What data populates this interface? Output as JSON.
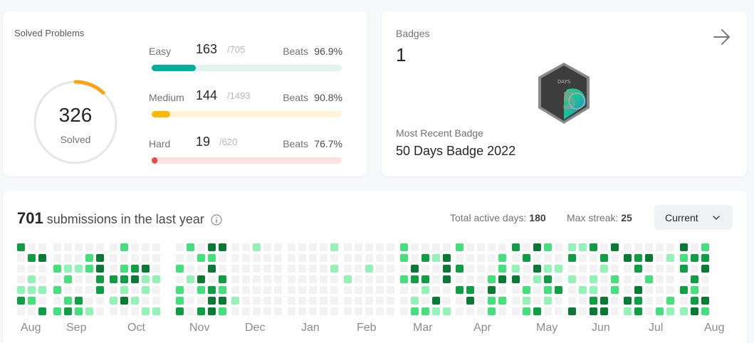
{
  "solved": {
    "title": "Solved Problems",
    "count": "326",
    "label": "Solved",
    "ring_fraction": 0.12,
    "ring_color": "#ffa116",
    "levels": [
      {
        "name": "Easy",
        "count": "163",
        "total": "/705",
        "beats_label": "Beats",
        "beats": "96.9%",
        "fraction": 0.231,
        "color": "#00af9b",
        "track": "#e1f3ea"
      },
      {
        "name": "Medium",
        "count": "144",
        "total": "/1493",
        "beats_label": "Beats",
        "beats": "90.8%",
        "fraction": 0.096,
        "color": "#ffb800",
        "track": "#fff4d6"
      },
      {
        "name": "Hard",
        "count": "19",
        "total": "/620",
        "beats_label": "Beats",
        "beats": "76.7%",
        "fraction": 0.031,
        "color": "#ef4743",
        "track": "#fde1e1"
      }
    ]
  },
  "badges": {
    "label": "Badges",
    "count": "1",
    "arrow_icon": "arrow-right-icon",
    "badge_icon": "50-days-badge-icon",
    "recent_label": "Most Recent Badge",
    "recent_name": "50 Days Badge 2022"
  },
  "submissions": {
    "count": "701",
    "text": "submissions in the last year",
    "active_days_label": "Total active days:",
    "active_days": "180",
    "max_streak_label": "Max streak:",
    "max_streak": "25",
    "dropdown_value": "Current",
    "months": [
      "Aug",
      "Sep",
      "Oct",
      "Nov",
      "Dec",
      "Jan",
      "Feb",
      "Mar",
      "Apr",
      "May",
      "Jun",
      "Jul",
      "Aug"
    ],
    "colors": {
      "empty": "#f2f2f2",
      "l1": "#93f2b6",
      "l2": "#43e07c",
      "l3": "#0e9f44",
      "l4": "#087a33"
    }
  }
}
